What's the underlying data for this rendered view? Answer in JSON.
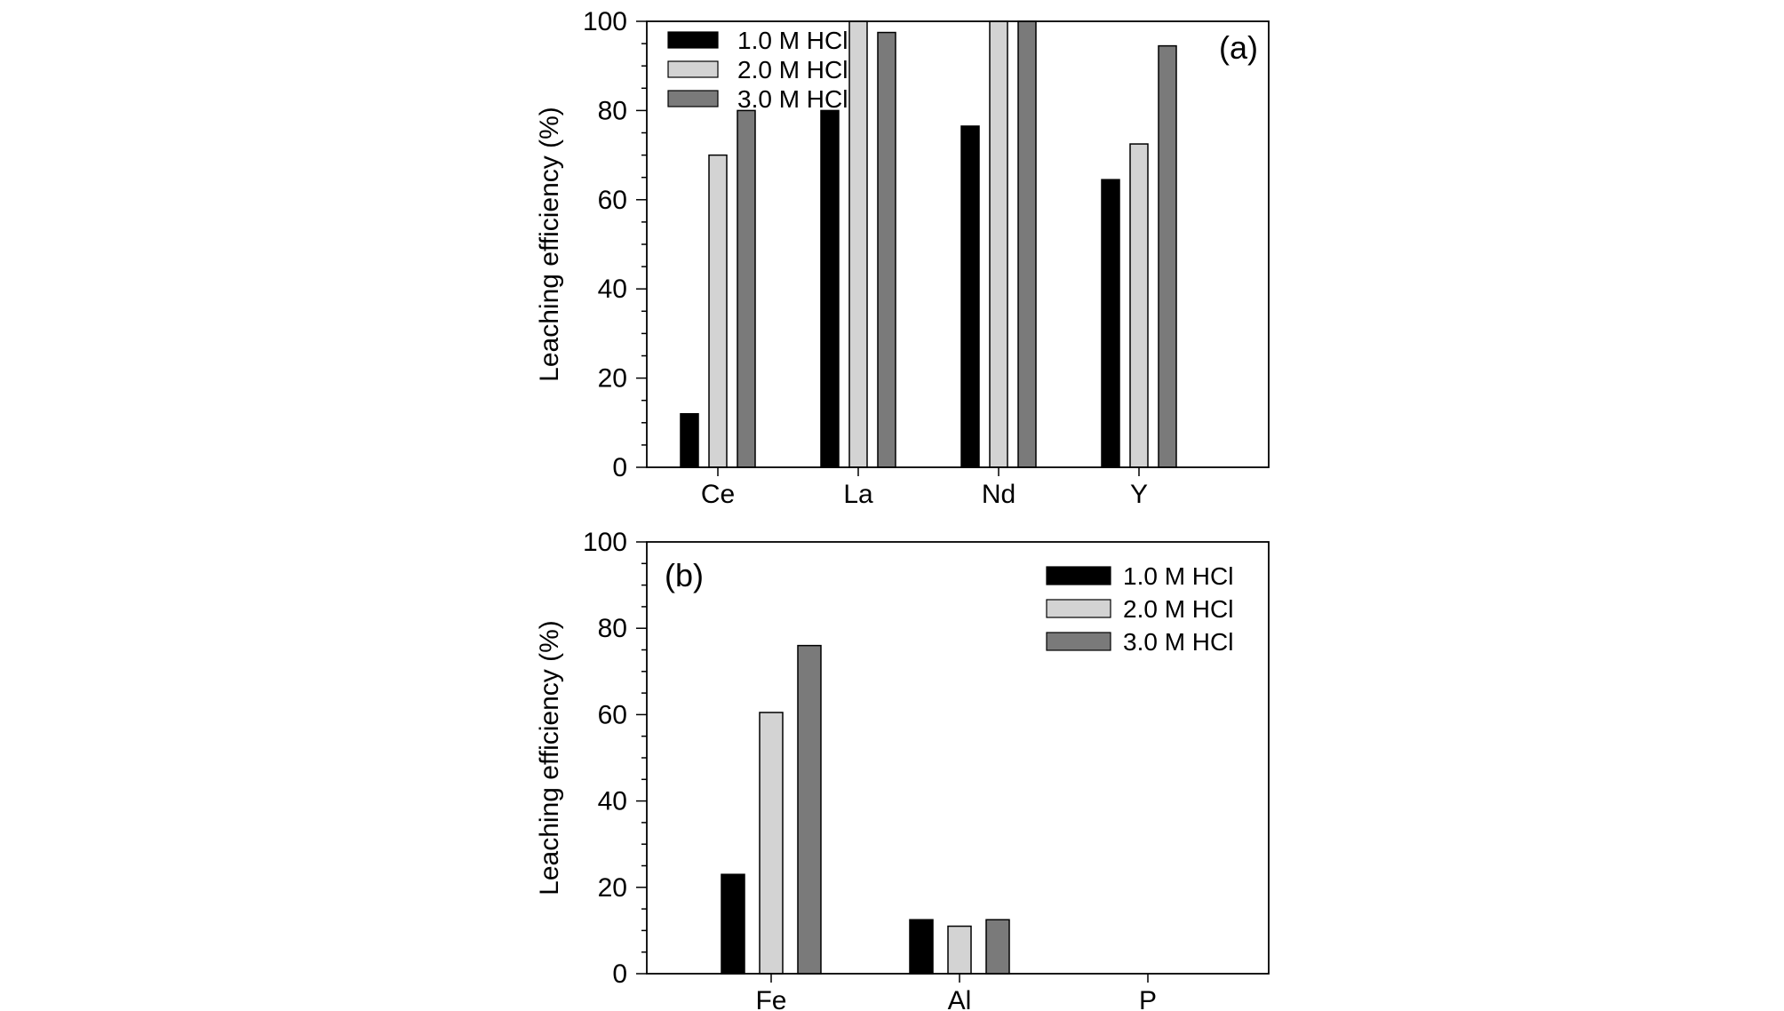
{
  "chart_data": [
    {
      "type": "bar",
      "panel_label": "(a)",
      "categories": [
        "Ce",
        "La",
        "Nd",
        "Y"
      ],
      "series": [
        {
          "name": "1.0 M HCl",
          "color": "#000000",
          "values": [
            12,
            80,
            76.5,
            64.5
          ]
        },
        {
          "name": "2.0 M HCl",
          "color": "#d3d3d3",
          "values": [
            70,
            100,
            100,
            72.5
          ]
        },
        {
          "name": "3.0 M HCl",
          "color": "#7a7a7a",
          "values": [
            80,
            97.5,
            100,
            94.5
          ]
        }
      ],
      "xlabel": "",
      "ylabel": "Leaching efficiency (%)",
      "ylim": [
        0,
        100
      ],
      "yticks": [
        "0",
        "20",
        "40",
        "60",
        "80",
        "100"
      ],
      "legend_position": "top-left",
      "grid": false
    },
    {
      "type": "bar",
      "panel_label": "(b)",
      "categories": [
        "Fe",
        "Al",
        "P"
      ],
      "series": [
        {
          "name": "1.0 M HCl",
          "color": "#000000",
          "values": [
            23,
            12.5,
            0
          ]
        },
        {
          "name": "2.0 M HCl",
          "color": "#d3d3d3",
          "values": [
            60.5,
            11,
            0
          ]
        },
        {
          "name": "3.0 M HCl",
          "color": "#7a7a7a",
          "values": [
            76,
            12.5,
            0
          ]
        }
      ],
      "xlabel": "",
      "ylabel": "Leaching efficiency (%)",
      "ylim": [
        0,
        100
      ],
      "yticks": [
        "0",
        "20",
        "40",
        "60",
        "80",
        "100"
      ],
      "legend_position": "top-right",
      "grid": false
    }
  ]
}
